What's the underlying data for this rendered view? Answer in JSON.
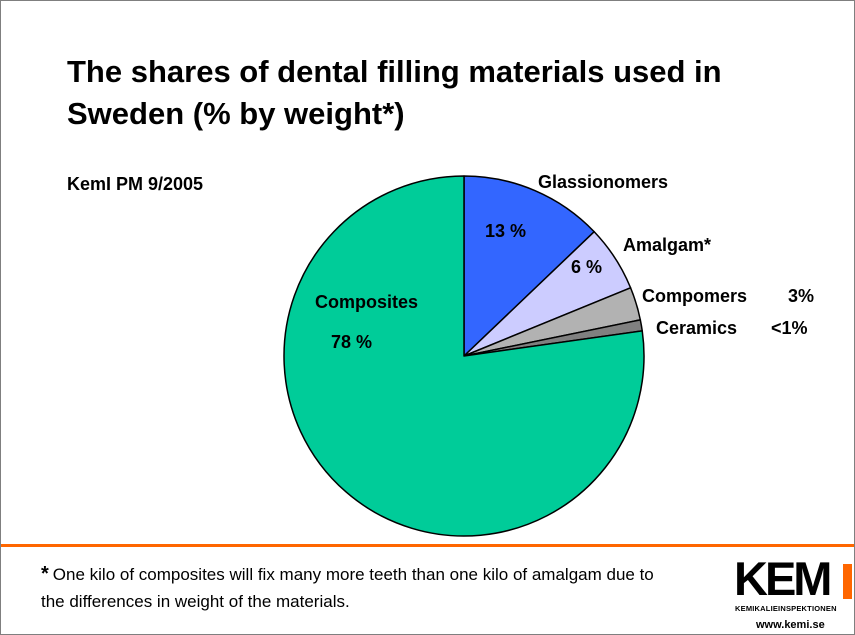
{
  "title": "The shares of dental filling materials used in Sweden (% by weight*)",
  "source": "KemI PM 9/2005",
  "footnote": {
    "mark": "*",
    "text": "One kilo of composites will fix many more teeth than one kilo of amalgam due to the differences in weight of the materials."
  },
  "logo": {
    "mark": "KEM",
    "subtitle": "KEMIKALIEINSPEKTIONEN",
    "url": "www.kemi.se"
  },
  "colors": {
    "accent_rule": "#ff6600",
    "outline": "#000000"
  },
  "chart_data": {
    "type": "pie",
    "title": "The shares of dental filling materials used in Sweden (% by weight*)",
    "start_direction": "12 o'clock, clockwise",
    "slices": [
      {
        "label": "Glassionomers",
        "value_label": "13 %",
        "value": 13,
        "color": "#3366ff"
      },
      {
        "label": "Amalgam*",
        "value_label": "6 %",
        "value": 6,
        "color": "#ccccff"
      },
      {
        "label": "Compomers",
        "value_label": "3%",
        "value": 3,
        "color": "#b2b2b2"
      },
      {
        "label": "Ceramics",
        "value_label": "<1%",
        "value": 1,
        "color": "#808080"
      },
      {
        "label": "Composites",
        "value_label": "78 %",
        "value": 78,
        "color": "#00cc99"
      }
    ]
  }
}
